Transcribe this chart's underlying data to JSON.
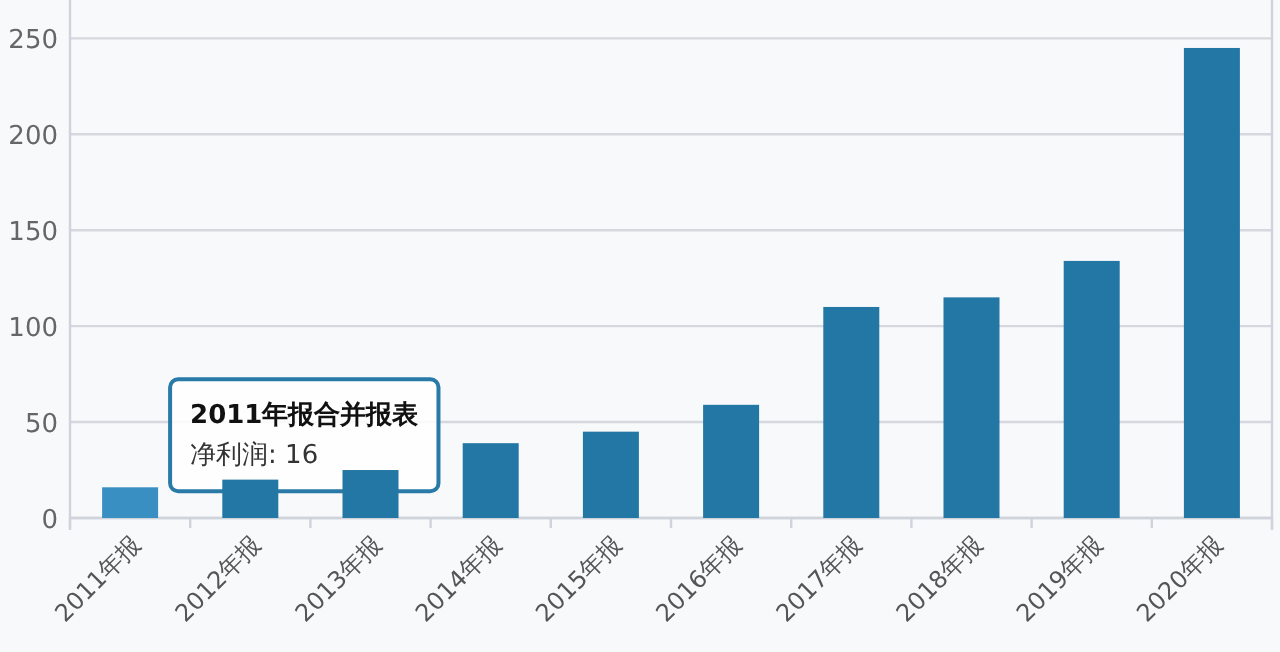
{
  "chart_data": {
    "type": "bar",
    "categories": [
      "2011年报",
      "2012年报",
      "2013年报",
      "2014年报",
      "2015年报",
      "2016年报",
      "2017年报",
      "2018年报",
      "2019年报",
      "2020年报"
    ],
    "values": [
      16,
      20,
      25,
      39,
      45,
      59,
      110,
      115,
      134,
      245
    ],
    "colors": [
      "#3a8fc2",
      "#2377a4",
      "#2377a4",
      "#2377a4",
      "#2377a4",
      "#2377a4",
      "#2377a4",
      "#2377a4",
      "#2377a4",
      "#2377a4"
    ],
    "ylim": [
      0,
      270
    ],
    "yticks": [
      0,
      50,
      100,
      150,
      200,
      250
    ],
    "grid": "y",
    "annotations": [
      "**2011年报合并报表**",
      "净利润: 16"
    ]
  }
}
